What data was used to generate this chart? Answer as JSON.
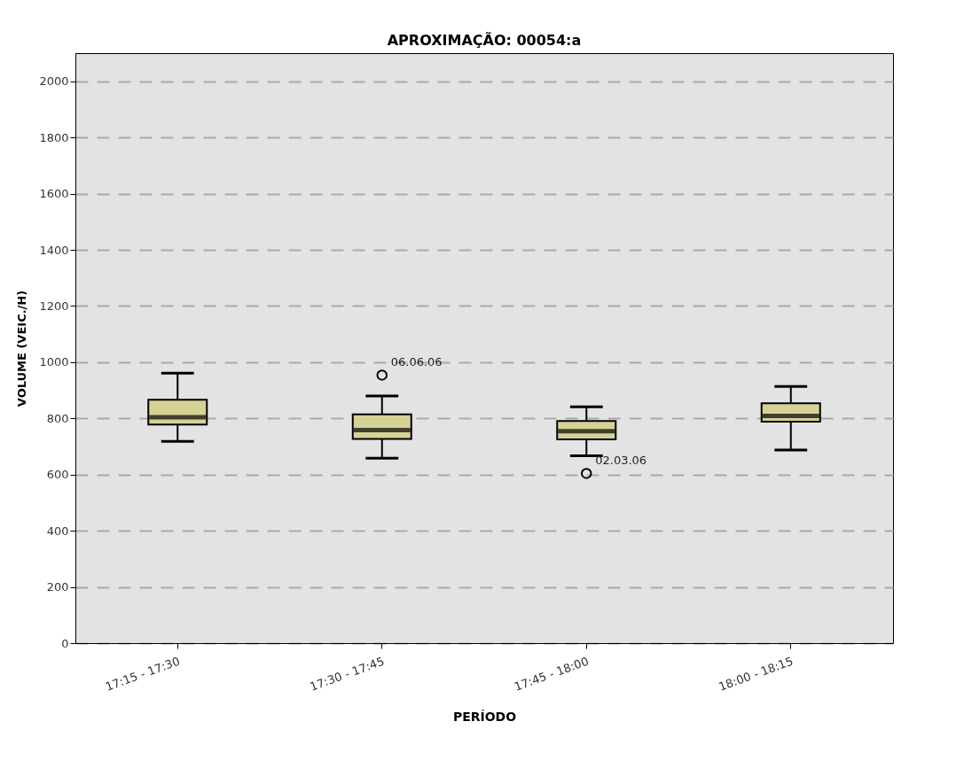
{
  "chart_data": {
    "type": "box",
    "title": "APROXIMAÇÃO: 00054:a",
    "xlabel": "PERÍODO",
    "ylabel": "VOLUME (VEIC./H)",
    "categories": [
      "17:15 - 17:30",
      "17:30 - 17:45",
      "17:45 - 18:00",
      "18:00 - 18:15"
    ],
    "color": "#d6d296",
    "boxes": [
      {
        "low": 718,
        "q1": 778,
        "median": 804,
        "q3": 866,
        "high": 961
      },
      {
        "low": 658,
        "q1": 727,
        "median": 758,
        "q3": 814,
        "high": 880,
        "outliers": [
          954
        ]
      },
      {
        "low": 667,
        "q1": 725,
        "median": 754,
        "q3": 791,
        "high": 841,
        "outliers": [
          604
        ]
      },
      {
        "low": 687,
        "q1": 788,
        "median": 809,
        "q3": 854,
        "high": 914
      }
    ],
    "annotations": [
      "06.06.06",
      "02.03.06"
    ],
    "ylim": [
      0,
      2100
    ],
    "yticks": [
      0,
      200,
      400,
      600,
      800,
      1000,
      1200,
      1400,
      1600,
      1800,
      2000
    ],
    "grid": "y",
    "marker": "circle"
  }
}
